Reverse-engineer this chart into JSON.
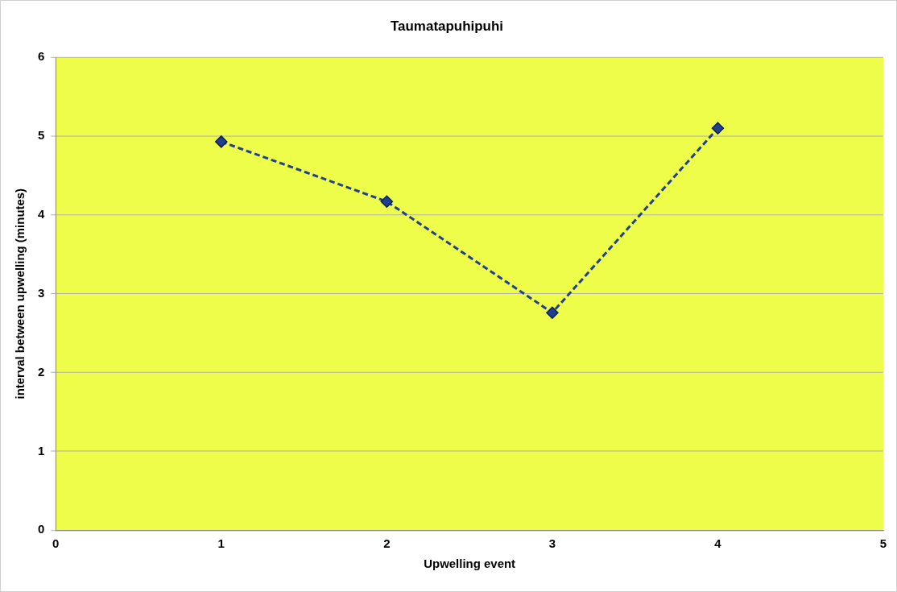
{
  "chart_data": {
    "type": "line",
    "title": "Taumatapuhipuhi",
    "xlabel": "Upwelling event",
    "ylabel": "interval between upwelling (minutes)",
    "x": [
      1,
      2,
      3,
      4
    ],
    "series": [
      {
        "color": "#1f3f8f",
        "values": [
          4.93,
          4.17,
          2.76,
          5.1
        ]
      }
    ],
    "xlim": [
      0,
      5
    ],
    "xticks": [
      0,
      1,
      2,
      3,
      4,
      5
    ],
    "ylim": [
      0,
      6
    ],
    "yticks": [
      0,
      1,
      2,
      3,
      4,
      5,
      6
    ],
    "grid": "y",
    "legend": false,
    "marker": "diamond",
    "line_style": "dashed"
  }
}
